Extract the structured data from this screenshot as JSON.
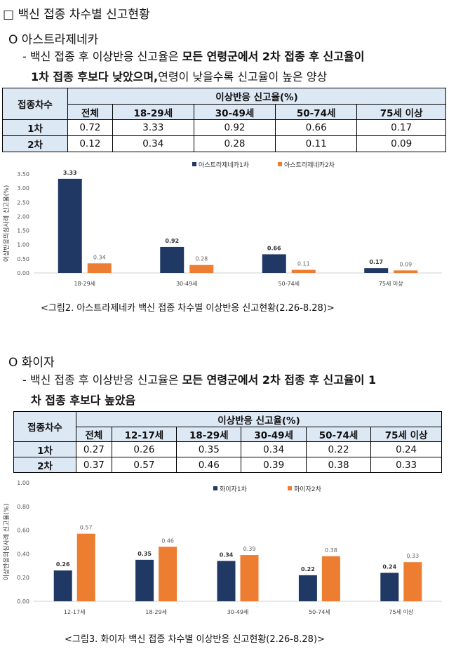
{
  "page_title": "□ 백신 접종 차수별 신고현황",
  "az": {
    "heading": "O 아스트라제네카",
    "line1_pre": "- 백신 접종 후 이상반응 신고율은 ",
    "line1_bold": "모든 연령군에서 2차 접종 후 신고율이",
    "line2_bold": "1차 접종 후보다 낮았으며,",
    "line2_post": "연령이 낮을수록 신고율이 높은 양상",
    "table": {
      "corner": "접종차수",
      "group_header": "이상반응 신고율(%)",
      "columns": [
        "전체",
        "18-29세",
        "30-49세",
        "50-74세",
        "75세 이상"
      ],
      "rows": [
        {
          "label": "1차",
          "cells": [
            "0.72",
            "3.33",
            "0.92",
            "0.66",
            "0.17"
          ]
        },
        {
          "label": "2차",
          "cells": [
            "0.12",
            "0.34",
            "0.28",
            "0.11",
            "0.09"
          ]
        }
      ]
    },
    "caption": "<그림2. 아스트라제네카 백신 접종 차수별 이상반응 신고현황(2.26-8.28)>"
  },
  "pf": {
    "heading": "O 화이자",
    "line1_pre": "- 백신 접종 후 이상반응 신고율은 ",
    "line1_bold": "모든 연령군에서 2차 접종 후 신고율이 1",
    "line2_bold": "차 접종 후보다 높았음",
    "table": {
      "corner": "접종차수",
      "group_header": "이상반응 신고율(%)",
      "columns": [
        "전체",
        "12-17세",
        "18-29세",
        "30-49세",
        "50-74세",
        "75세 이상"
      ],
      "rows": [
        {
          "label": "1차",
          "cells": [
            "0.27",
            "0.26",
            "0.35",
            "0.34",
            "0.22",
            "0.24"
          ]
        },
        {
          "label": "2차",
          "cells": [
            "0.37",
            "0.57",
            "0.46",
            "0.39",
            "0.38",
            "0.33"
          ]
        }
      ]
    },
    "caption": "<그림3. 화이자 백신 접종 차수별 이상반응 신고현황(2.26-8.28)>"
  },
  "chart_data": [
    {
      "type": "bar",
      "title": "",
      "ylabel": "이상반응의심사례 신고율(%)",
      "xlabel": "",
      "categories": [
        "18-29세",
        "30-49세",
        "50-74세",
        "75세 이상"
      ],
      "series": [
        {
          "name": "아스트라제네카1차",
          "color": "#203864",
          "values": [
            3.33,
            0.92,
            0.66,
            0.17
          ]
        },
        {
          "name": "아스트라제네카2차",
          "color": "#ed7d31",
          "values": [
            0.34,
            0.28,
            0.11,
            0.09
          ]
        }
      ],
      "ylim": [
        0,
        3.5
      ],
      "yticks": [
        "0.00",
        "0.50",
        "1.00",
        "1.50",
        "2.00",
        "2.50",
        "3.00",
        "3.50"
      ],
      "legend": "top-right"
    },
    {
      "type": "bar",
      "title": "",
      "ylabel": "이상반응의심사례 신고율(%)",
      "xlabel": "",
      "categories": [
        "12-17세",
        "18-29세",
        "30-49세",
        "50-74세",
        "75세 이상"
      ],
      "series": [
        {
          "name": "화이자1차",
          "color": "#203864",
          "values": [
            0.26,
            0.35,
            0.34,
            0.22,
            0.24
          ]
        },
        {
          "name": "화이자2차",
          "color": "#ed7d31",
          "values": [
            0.57,
            0.46,
            0.39,
            0.38,
            0.33
          ]
        }
      ],
      "ylim": [
        0,
        1.0
      ],
      "yticks": [
        "0.00",
        "0.20",
        "0.40",
        "0.60",
        "0.80",
        "1.00"
      ],
      "legend": "top-right"
    }
  ]
}
